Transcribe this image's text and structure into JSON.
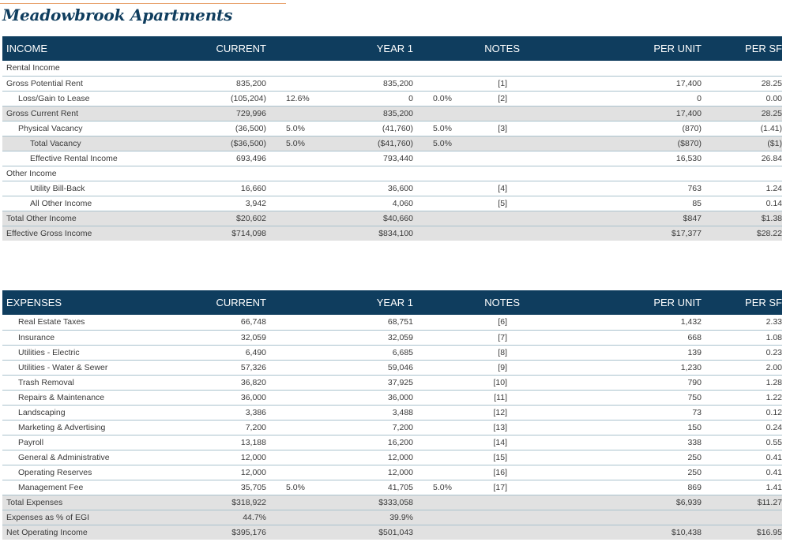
{
  "title": "Meadowbrook Apartments",
  "income": {
    "headers": {
      "label": "INCOME",
      "current": "CURRENT",
      "year1": "YEAR 1",
      "notes": "NOTES",
      "per_unit": "PER UNIT",
      "per_sf": "PER SF"
    },
    "rows": [
      {
        "label": "Rental Income",
        "current": "",
        "current_pct": "",
        "year1": "",
        "year1_pct": "",
        "notes": "",
        "per_unit": "",
        "per_sf": ""
      },
      {
        "label": "Gross Potential Rent",
        "current": "835,200",
        "current_pct": "",
        "year1": "835,200",
        "year1_pct": "",
        "notes": "[1]",
        "per_unit": "17,400",
        "per_sf": "28.25"
      },
      {
        "label": "Loss/Gain to Lease",
        "current": "(105,204)",
        "current_pct": "12.6%",
        "year1": "0",
        "year1_pct": "0.0%",
        "notes": "[2]",
        "per_unit": "0",
        "per_sf": "0.00"
      },
      {
        "label": "Gross Current Rent",
        "current": "729,996",
        "current_pct": "",
        "year1": "835,200",
        "year1_pct": "",
        "notes": "",
        "per_unit": "17,400",
        "per_sf": "28.25"
      },
      {
        "label": "Physical Vacancy",
        "current": "(36,500)",
        "current_pct": "5.0%",
        "year1": "(41,760)",
        "year1_pct": "5.0%",
        "notes": "[3]",
        "per_unit": "(870)",
        "per_sf": "(1.41)"
      },
      {
        "label": "Total Vacancy",
        "current": "($36,500)",
        "current_pct": "5.0%",
        "year1": "($41,760)",
        "year1_pct": "5.0%",
        "notes": "",
        "per_unit": "($870)",
        "per_sf": "($1)"
      },
      {
        "label": "Effective Rental Income",
        "current": "693,496",
        "current_pct": "",
        "year1": "793,440",
        "year1_pct": "",
        "notes": "",
        "per_unit": "16,530",
        "per_sf": "26.84"
      },
      {
        "label": "Other Income",
        "current": "",
        "current_pct": "",
        "year1": "",
        "year1_pct": "",
        "notes": "",
        "per_unit": "",
        "per_sf": ""
      },
      {
        "label": "Utility Bill-Back",
        "current": "16,660",
        "current_pct": "",
        "year1": "36,600",
        "year1_pct": "",
        "notes": "[4]",
        "per_unit": "763",
        "per_sf": "1.24"
      },
      {
        "label": "All Other Income",
        "current": "3,942",
        "current_pct": "",
        "year1": "4,060",
        "year1_pct": "",
        "notes": "[5]",
        "per_unit": "85",
        "per_sf": "0.14"
      },
      {
        "label": "Total Other Income",
        "current": "$20,602",
        "current_pct": "",
        "year1": "$40,660",
        "year1_pct": "",
        "notes": "",
        "per_unit": "$847",
        "per_sf": "$1.38"
      },
      {
        "label": "Effective Gross Income",
        "current": "$714,098",
        "current_pct": "",
        "year1": "$834,100",
        "year1_pct": "",
        "notes": "",
        "per_unit": "$17,377",
        "per_sf": "$28.22"
      }
    ]
  },
  "expenses": {
    "headers": {
      "label": "EXPENSES",
      "current": "CURRENT",
      "year1": "YEAR 1",
      "notes": "NOTES",
      "per_unit": "PER UNIT",
      "per_sf": "PER SF"
    },
    "rows": [
      {
        "label": "Real Estate Taxes",
        "current": "66,748",
        "current_pct": "",
        "year1": "68,751",
        "year1_pct": "",
        "notes": "[6]",
        "per_unit": "1,432",
        "per_sf": "2.33"
      },
      {
        "label": "Insurance",
        "current": "32,059",
        "current_pct": "",
        "year1": "32,059",
        "year1_pct": "",
        "notes": "[7]",
        "per_unit": "668",
        "per_sf": "1.08"
      },
      {
        "label": "Utilities - Electric",
        "current": "6,490",
        "current_pct": "",
        "year1": "6,685",
        "year1_pct": "",
        "notes": "[8]",
        "per_unit": "139",
        "per_sf": "0.23"
      },
      {
        "label": "Utilities - Water & Sewer",
        "current": "57,326",
        "current_pct": "",
        "year1": "59,046",
        "year1_pct": "",
        "notes": "[9]",
        "per_unit": "1,230",
        "per_sf": "2.00"
      },
      {
        "label": "Trash Removal",
        "current": "36,820",
        "current_pct": "",
        "year1": "37,925",
        "year1_pct": "",
        "notes": "[10]",
        "per_unit": "790",
        "per_sf": "1.28"
      },
      {
        "label": "Repairs & Maintenance",
        "current": "36,000",
        "current_pct": "",
        "year1": "36,000",
        "year1_pct": "",
        "notes": "[11]",
        "per_unit": "750",
        "per_sf": "1.22"
      },
      {
        "label": "Landscaping",
        "current": "3,386",
        "current_pct": "",
        "year1": "3,488",
        "year1_pct": "",
        "notes": "[12]",
        "per_unit": "73",
        "per_sf": "0.12"
      },
      {
        "label": "Marketing & Advertising",
        "current": "7,200",
        "current_pct": "",
        "year1": "7,200",
        "year1_pct": "",
        "notes": "[13]",
        "per_unit": "150",
        "per_sf": "0.24"
      },
      {
        "label": "Payroll",
        "current": "13,188",
        "current_pct": "",
        "year1": "16,200",
        "year1_pct": "",
        "notes": "[14]",
        "per_unit": "338",
        "per_sf": "0.55"
      },
      {
        "label": "General & Administrative",
        "current": "12,000",
        "current_pct": "",
        "year1": "12,000",
        "year1_pct": "",
        "notes": "[15]",
        "per_unit": "250",
        "per_sf": "0.41"
      },
      {
        "label": "Operating Reserves",
        "current": "12,000",
        "current_pct": "",
        "year1": "12,000",
        "year1_pct": "",
        "notes": "[16]",
        "per_unit": "250",
        "per_sf": "0.41"
      },
      {
        "label": "Management Fee",
        "current": "35,705",
        "current_pct": "5.0%",
        "year1": "41,705",
        "year1_pct": "5.0%",
        "notes": "[17]",
        "per_unit": "869",
        "per_sf": "1.41"
      },
      {
        "label": "Total Expenses",
        "current": "$318,922",
        "current_pct": "",
        "year1": "$333,058",
        "year1_pct": "",
        "notes": "",
        "per_unit": "$6,939",
        "per_sf": "$11.27"
      },
      {
        "label": "Expenses as % of EGI",
        "current": "44.7%",
        "current_pct": "",
        "year1": "39.9%",
        "year1_pct": "",
        "notes": "",
        "per_unit": "",
        "per_sf": ""
      },
      {
        "label": "Net Operating Income",
        "current": "$395,176",
        "current_pct": "",
        "year1": "$501,043",
        "year1_pct": "",
        "notes": "",
        "per_unit": "$10,438",
        "per_sf": "$16.95"
      }
    ]
  }
}
